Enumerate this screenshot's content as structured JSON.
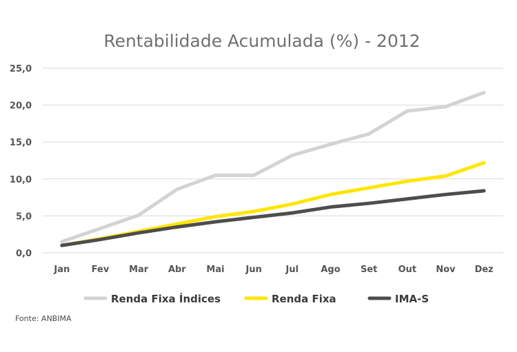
{
  "chart_data": {
    "type": "line",
    "title": "Rentabilidade Acumulada (%) - 2012",
    "categories": [
      "Jan",
      "Fev",
      "Mar",
      "Abr",
      "Mai",
      "Jun",
      "Jul",
      "Ago",
      "Set",
      "Out",
      "Nov",
      "Dez"
    ],
    "ylim": [
      0,
      25
    ],
    "yticks": [
      "0,0",
      "5,0",
      "10,0",
      "15,0",
      "20,0",
      "25,0"
    ],
    "grid": true,
    "legend_position": "bottom",
    "series": [
      {
        "name": "Renda Fixa Índices",
        "color": "#d3d3d3",
        "values": [
          1.5,
          3.3,
          5.1,
          8.6,
          10.5,
          10.5,
          13.2,
          14.7,
          16.1,
          19.2,
          19.8,
          21.7
        ]
      },
      {
        "name": "Renda Fixa",
        "color": "#ffe600",
        "values": [
          1.0,
          1.9,
          2.9,
          3.9,
          4.9,
          5.6,
          6.6,
          7.9,
          8.8,
          9.7,
          10.4,
          12.2
        ]
      },
      {
        "name": "IMA-S",
        "color": "#4d4d4d",
        "values": [
          1.0,
          1.8,
          2.7,
          3.5,
          4.2,
          4.8,
          5.4,
          6.2,
          6.7,
          7.3,
          7.9,
          8.4
        ]
      }
    ]
  },
  "source": "Fonte: ANBIMA"
}
